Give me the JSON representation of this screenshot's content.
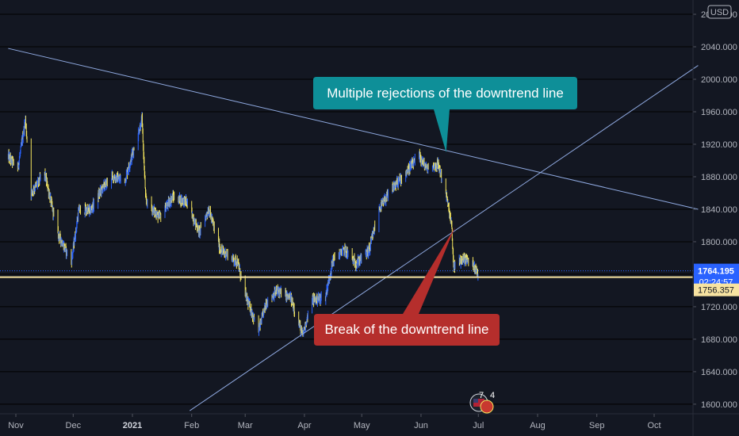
{
  "chart_data": {
    "type": "candlestick",
    "title": "",
    "currency": "USD",
    "y_axis": {
      "ticks": [
        "1600.000",
        "1640.000",
        "1680.000",
        "1720.000",
        "1760.000",
        "1800.000",
        "1840.000",
        "1880.000",
        "1920.000",
        "1960.000",
        "2000.000",
        "2040.000",
        "2080.000"
      ],
      "ylim": [
        1595,
        2085
      ],
      "grid": true
    },
    "x_axis": {
      "ticks": [
        {
          "label": "Nov",
          "date": "2020-11-01"
        },
        {
          "label": "Dec",
          "date": "2020-12-01"
        },
        {
          "label": "2021",
          "date": "2021-01-01",
          "bold": true
        },
        {
          "label": "Feb",
          "date": "2021-02-01"
        },
        {
          "label": "Mar",
          "date": "2021-03-01"
        },
        {
          "label": "Apr",
          "date": "2021-04-01"
        },
        {
          "label": "May",
          "date": "2021-05-01"
        },
        {
          "label": "Jun",
          "date": "2021-06-01"
        },
        {
          "label": "Jul",
          "date": "2021-07-01"
        },
        {
          "label": "Aug",
          "date": "2021-08-01"
        },
        {
          "label": "Sep",
          "date": "2021-09-01"
        },
        {
          "label": "Oct",
          "date": "2021-10-01"
        }
      ]
    },
    "price_path": [
      [
        "2020-10-28",
        1905
      ],
      [
        "2020-11-02",
        1890
      ],
      [
        "2020-11-06",
        1950
      ],
      [
        "2020-11-09",
        1860
      ],
      [
        "2020-11-16",
        1885
      ],
      [
        "2020-11-23",
        1810
      ],
      [
        "2020-11-30",
        1775
      ],
      [
        "2020-12-04",
        1840
      ],
      [
        "2020-12-10",
        1838
      ],
      [
        "2020-12-16",
        1865
      ],
      [
        "2020-12-21",
        1880
      ],
      [
        "2020-12-28",
        1875
      ],
      [
        "2021-01-06",
        1950
      ],
      [
        "2021-01-08",
        1850
      ],
      [
        "2021-01-15",
        1830
      ],
      [
        "2021-01-22",
        1855
      ],
      [
        "2021-01-29",
        1850
      ],
      [
        "2021-02-05",
        1812
      ],
      [
        "2021-02-10",
        1840
      ],
      [
        "2021-02-16",
        1790
      ],
      [
        "2021-02-25",
        1775
      ],
      [
        "2021-03-01",
        1735
      ],
      [
        "2021-03-08",
        1690
      ],
      [
        "2021-03-12",
        1725
      ],
      [
        "2021-03-18",
        1740
      ],
      [
        "2021-03-25",
        1730
      ],
      [
        "2021-03-31",
        1685
      ],
      [
        "2021-04-05",
        1728
      ],
      [
        "2021-04-12",
        1732
      ],
      [
        "2021-04-16",
        1778
      ],
      [
        "2021-04-22",
        1790
      ],
      [
        "2021-04-28",
        1773
      ],
      [
        "2021-05-05",
        1790
      ],
      [
        "2021-05-10",
        1840
      ],
      [
        "2021-05-17",
        1865
      ],
      [
        "2021-05-24",
        1885
      ],
      [
        "2021-05-31",
        1905
      ],
      [
        "2021-06-04",
        1890
      ],
      [
        "2021-06-10",
        1895
      ],
      [
        "2021-06-14",
        1860
      ],
      [
        "2021-06-17",
        1820
      ],
      [
        "2021-06-18",
        1770
      ],
      [
        "2021-06-24",
        1780
      ],
      [
        "2021-06-29",
        1770
      ],
      [
        "2021-07-01",
        1758
      ]
    ],
    "current_price": "1764.195",
    "countdown": "02:24:57",
    "horizontal_level": "1756.357",
    "trendlines": [
      {
        "name": "downtrend line",
        "from": [
          "2020-10-28",
          2038
        ],
        "to": [
          "2021-10-24",
          1840
        ]
      },
      {
        "name": "uptrend line",
        "from": [
          "2021-01-31",
          1592
        ],
        "to": [
          "2021-10-24",
          2017
        ]
      }
    ],
    "annotations": [
      {
        "text": "Multiple rejections of the downtrend line",
        "color": "#0e8f98",
        "target": [
          "2021-06-10",
          1910
        ]
      },
      {
        "text": "Break of the downtrend line",
        "color": "#b52e2c",
        "target": [
          "2021-06-18",
          1818
        ]
      }
    ],
    "events": [
      "7",
      "4"
    ],
    "colors": {
      "background": "#131722",
      "candle_up": "#2962ff",
      "candle_down": "#f5e65e",
      "trendline": "#8fa9e0",
      "level_line": "#f7e3a1",
      "annotation_teal": "#0e8f98",
      "annotation_red": "#b52e2c"
    }
  }
}
